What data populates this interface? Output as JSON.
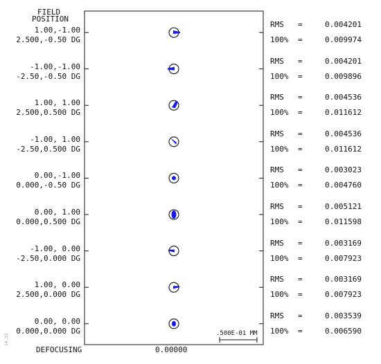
{
  "header": {
    "line1": "FIELD",
    "line2": "POSITION"
  },
  "footer": {
    "defocus_label": "DEFOCUSING",
    "defocus_value": "0.00000",
    "scale_label": ".500E-01 MM",
    "side_text": "14:33"
  },
  "colors": {
    "spot": "#1a1ae6",
    "ink": "#111111"
  },
  "rows": [
    {
      "pos1": "1.00,-1.00",
      "pos2": "2.500,-0.50 DG",
      "rms_label": "RMS",
      "rms_eq": "=",
      "rms": "0.004201",
      "p100_label": "100%",
      "p100_eq": "=",
      "p100": "0.009974"
    },
    {
      "pos1": "-1.00,-1.00",
      "pos2": "-2.50,-0.50 DG",
      "rms_label": "RMS",
      "rms_eq": "=",
      "rms": "0.004201",
      "p100_label": "100%",
      "p100_eq": "=",
      "p100": "0.009896"
    },
    {
      "pos1": "1.00, 1.00",
      "pos2": "2.500,0.500 DG",
      "rms_label": "RMS",
      "rms_eq": "=",
      "rms": "0.004536",
      "p100_label": "100%",
      "p100_eq": "=",
      "p100": "0.011612"
    },
    {
      "pos1": "-1.00, 1.00",
      "pos2": "-2.50,0.500 DG",
      "rms_label": "RMS",
      "rms_eq": "=",
      "rms": "0.004536",
      "p100_label": "100%",
      "p100_eq": "=",
      "p100": "0.011612"
    },
    {
      "pos1": "0.00,-1.00",
      "pos2": "0.000,-0.50 DG",
      "rms_label": "RMS",
      "rms_eq": "=",
      "rms": "0.003023",
      "p100_label": "100%",
      "p100_eq": "=",
      "p100": "0.004760"
    },
    {
      "pos1": "0.00, 1.00",
      "pos2": "0.000,0.500 DG",
      "rms_label": "RMS",
      "rms_eq": "=",
      "rms": "0.005121",
      "p100_label": "100%",
      "p100_eq": "=",
      "p100": "0.011598"
    },
    {
      "pos1": "-1.00, 0.00",
      "pos2": "-2.50,0.000 DG",
      "rms_label": "RMS",
      "rms_eq": "=",
      "rms": "0.003169",
      "p100_label": "100%",
      "p100_eq": "=",
      "p100": "0.007923"
    },
    {
      "pos1": "1.00, 0.00",
      "pos2": "2.500,0.000 DG",
      "rms_label": "RMS",
      "rms_eq": "=",
      "rms": "0.003169",
      "p100_label": "100%",
      "p100_eq": "=",
      "p100": "0.007923"
    },
    {
      "pos1": "0.00, 0.00",
      "pos2": "0.000,0.000 DG",
      "rms_label": "RMS",
      "rms_eq": "=",
      "rms": "0.003539",
      "p100_label": "100%",
      "p100_eq": "=",
      "p100": "0.006590"
    }
  ]
}
